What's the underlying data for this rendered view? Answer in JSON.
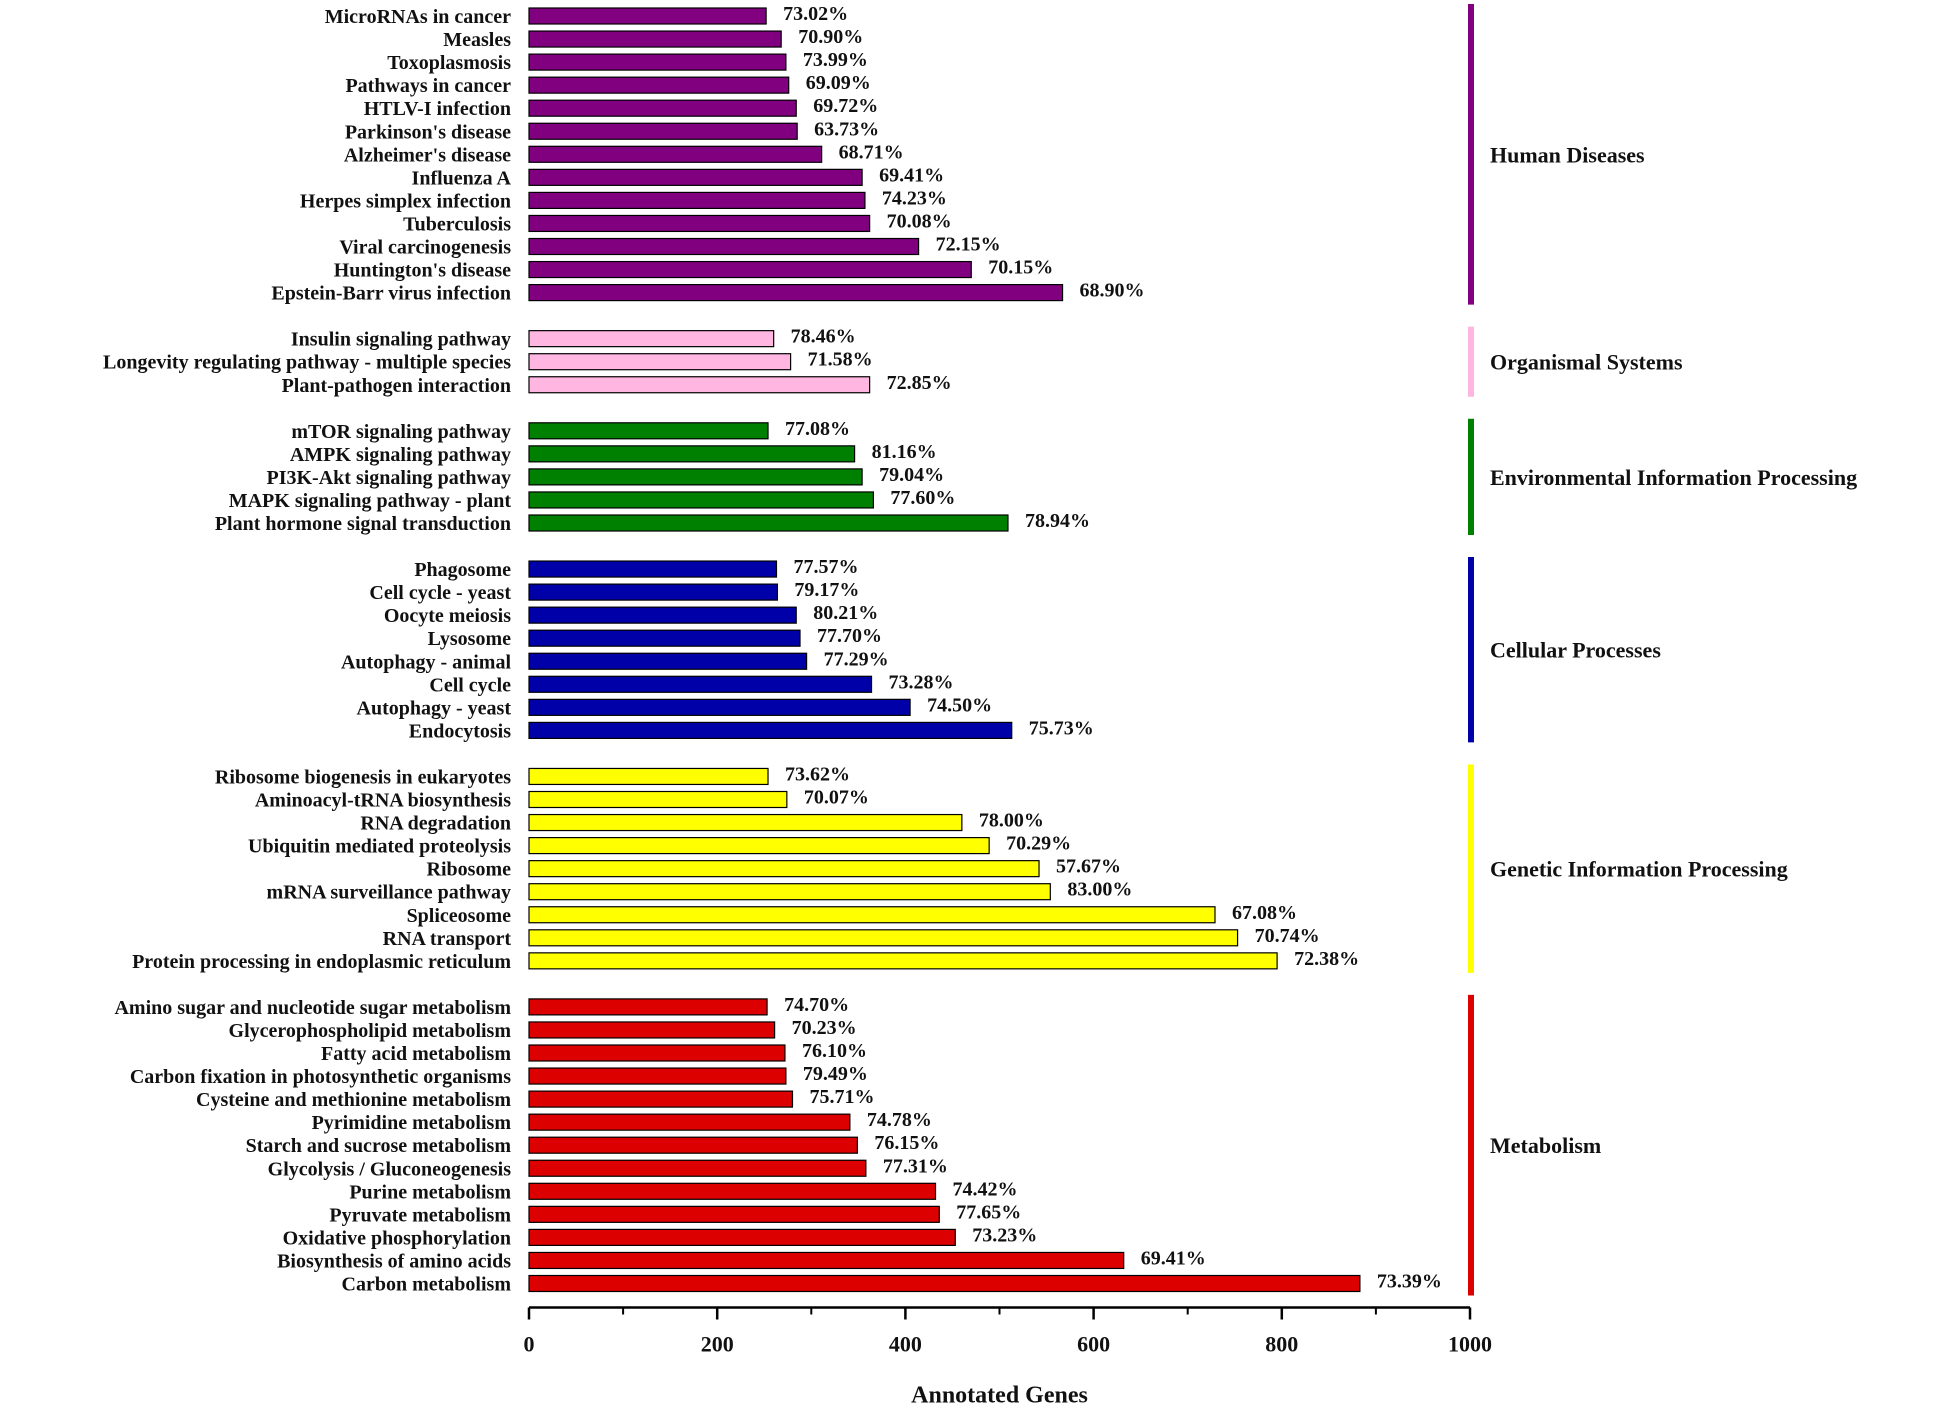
{
  "chart_data": {
    "type": "bar",
    "orientation": "horizontal",
    "xlabel": "Annotated Genes",
    "xlim": [
      0,
      1000
    ],
    "xticks": [
      0,
      200,
      400,
      600,
      800,
      1000
    ],
    "grid": false,
    "groups": [
      {
        "name": "Human Diseases",
        "color": "#800080",
        "items": [
          {
            "label": "MicroRNAs in cancer",
            "value": 252,
            "pct": "73.02%"
          },
          {
            "label": "Measles",
            "value": 268,
            "pct": "70.90%"
          },
          {
            "label": "Toxoplasmosis",
            "value": 273,
            "pct": "73.99%"
          },
          {
            "label": "Pathways in cancer",
            "value": 276,
            "pct": "69.09%"
          },
          {
            "label": "HTLV-I infection",
            "value": 284,
            "pct": "69.72%"
          },
          {
            "label": "Parkinson's disease",
            "value": 285,
            "pct": "63.73%"
          },
          {
            "label": "Alzheimer's disease",
            "value": 311,
            "pct": "68.71%"
          },
          {
            "label": "Influenza A",
            "value": 354,
            "pct": "69.41%"
          },
          {
            "label": "Herpes simplex infection",
            "value": 357,
            "pct": "74.23%"
          },
          {
            "label": "Tuberculosis",
            "value": 362,
            "pct": "70.08%"
          },
          {
            "label": "Viral carcinogenesis",
            "value": 414,
            "pct": "72.15%"
          },
          {
            "label": "Huntington's disease",
            "value": 470,
            "pct": "70.15%"
          },
          {
            "label": "Epstein-Barr virus infection",
            "value": 567,
            "pct": "68.90%"
          }
        ]
      },
      {
        "name": "Organismal Systems",
        "color": "#ffb6e1",
        "items": [
          {
            "label": "Insulin signaling pathway",
            "value": 260,
            "pct": "78.46%"
          },
          {
            "label": "Longevity regulating pathway - multiple species",
            "value": 278,
            "pct": "71.58%"
          },
          {
            "label": "Plant-pathogen interaction",
            "value": 362,
            "pct": "72.85%"
          }
        ]
      },
      {
        "name": "Environmental Information Processing",
        "color": "#008000",
        "items": [
          {
            "label": "mTOR signaling pathway",
            "value": 254,
            "pct": "77.08%"
          },
          {
            "label": "AMPK signaling pathway",
            "value": 346,
            "pct": "81.16%"
          },
          {
            "label": "PI3K-Akt signaling pathway",
            "value": 354,
            "pct": "79.04%"
          },
          {
            "label": "MAPK signaling pathway - plant",
            "value": 366,
            "pct": "77.60%"
          },
          {
            "label": "Plant hormone signal transduction",
            "value": 509,
            "pct": "78.94%"
          }
        ]
      },
      {
        "name": "Cellular Processes",
        "color": "#0000a8",
        "items": [
          {
            "label": "Phagosome",
            "value": 263,
            "pct": "77.57%"
          },
          {
            "label": "Cell cycle - yeast",
            "value": 264,
            "pct": "79.17%"
          },
          {
            "label": "Oocyte meiosis",
            "value": 284,
            "pct": "80.21%"
          },
          {
            "label": "Lysosome",
            "value": 288,
            "pct": "77.70%"
          },
          {
            "label": "Autophagy - animal",
            "value": 295,
            "pct": "77.29%"
          },
          {
            "label": "Cell cycle",
            "value": 364,
            "pct": "73.28%"
          },
          {
            "label": "Autophagy - yeast",
            "value": 405,
            "pct": "74.50%"
          },
          {
            "label": "Endocytosis",
            "value": 513,
            "pct": "75.73%"
          }
        ]
      },
      {
        "name": "Genetic Information Processing",
        "color": "#ffff00",
        "items": [
          {
            "label": "Ribosome biogenesis in eukaryotes",
            "value": 254,
            "pct": "73.62%"
          },
          {
            "label": "Aminoacyl-tRNA biosynthesis",
            "value": 274,
            "pct": "70.07%"
          },
          {
            "label": "RNA degradation",
            "value": 460,
            "pct": "78.00%"
          },
          {
            "label": "Ubiquitin mediated proteolysis",
            "value": 489,
            "pct": "70.29%"
          },
          {
            "label": "Ribosome",
            "value": 542,
            "pct": "57.67%"
          },
          {
            "label": "mRNA surveillance pathway",
            "value": 554,
            "pct": "83.00%"
          },
          {
            "label": "Spliceosome",
            "value": 729,
            "pct": "67.08%"
          },
          {
            "label": "RNA transport",
            "value": 753,
            "pct": "70.74%"
          },
          {
            "label": "Protein processing in endoplasmic reticulum",
            "value": 795,
            "pct": "72.38%"
          }
        ]
      },
      {
        "name": "Metabolism",
        "color": "#dd0000",
        "items": [
          {
            "label": "Amino sugar and nucleotide sugar metabolism",
            "value": 253,
            "pct": "74.70%"
          },
          {
            "label": "Glycerophospholipid metabolism",
            "value": 261,
            "pct": "70.23%"
          },
          {
            "label": "Fatty acid metabolism",
            "value": 272,
            "pct": "76.10%"
          },
          {
            "label": "Carbon fixation in photosynthetic organisms",
            "value": 273,
            "pct": "79.49%"
          },
          {
            "label": "Cysteine and methionine metabolism",
            "value": 280,
            "pct": "75.71%"
          },
          {
            "label": "Pyrimidine metabolism",
            "value": 341,
            "pct": "74.78%"
          },
          {
            "label": "Starch and sucrose metabolism",
            "value": 349,
            "pct": "76.15%"
          },
          {
            "label": "Glycolysis / Gluconeogenesis",
            "value": 358,
            "pct": "77.31%"
          },
          {
            "label": "Purine metabolism",
            "value": 432,
            "pct": "74.42%"
          },
          {
            "label": "Pyruvate metabolism",
            "value": 436,
            "pct": "77.65%"
          },
          {
            "label": "Oxidative phosphorylation",
            "value": 453,
            "pct": "73.23%"
          },
          {
            "label": "Biosynthesis of amino acids",
            "value": 632,
            "pct": "69.41%"
          },
          {
            "label": "Carbon metabolism",
            "value": 883,
            "pct": "73.39%"
          }
        ]
      }
    ]
  }
}
